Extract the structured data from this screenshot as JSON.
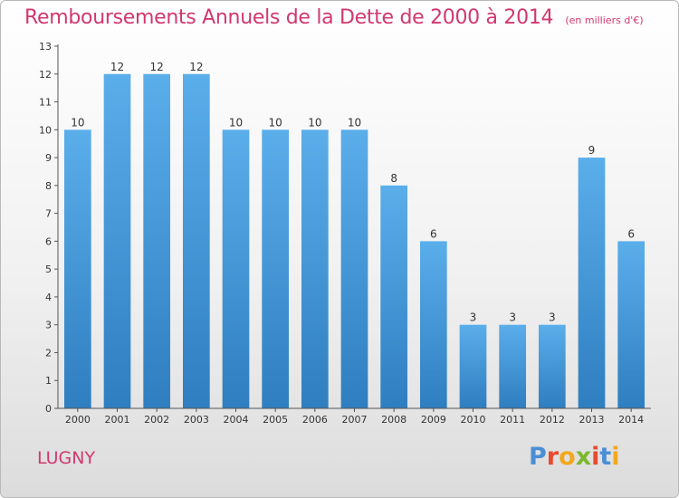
{
  "title": "Remboursements Annuels de la Dette de 2000 à 2014",
  "subtitle": "(en milliers d'€)",
  "commune": "LUGNY",
  "brand": {
    "letters": [
      {
        "char": "P",
        "color": "#4a8fd6"
      },
      {
        "char": "r",
        "color": "#e84a2e"
      },
      {
        "char": "o",
        "color": "#f2a81d"
      },
      {
        "char": "x",
        "color": "#7cb82f"
      },
      {
        "char": "i",
        "color": "#e84a2e"
      },
      {
        "char": "t",
        "color": "#4a8fd6"
      },
      {
        "char": "i",
        "color": "#f2a81d"
      }
    ]
  },
  "chart_data": {
    "type": "bar",
    "categories": [
      "2000",
      "2001",
      "2002",
      "2003",
      "2004",
      "2005",
      "2006",
      "2007",
      "2008",
      "2009",
      "2010",
      "2011",
      "2012",
      "2013",
      "2014"
    ],
    "values": [
      10,
      12,
      12,
      12,
      10,
      10,
      10,
      10,
      8,
      6,
      3,
      3,
      3,
      9,
      6
    ],
    "ylim": [
      0,
      13
    ],
    "yticks": [
      0,
      1,
      2,
      3,
      4,
      5,
      6,
      7,
      8,
      9,
      10,
      11,
      12,
      13
    ],
    "grid": false,
    "bar_color_top": "#5aaeea",
    "bar_color_bottom": "#2f7ec0",
    "title_color": "#d1386f"
  }
}
